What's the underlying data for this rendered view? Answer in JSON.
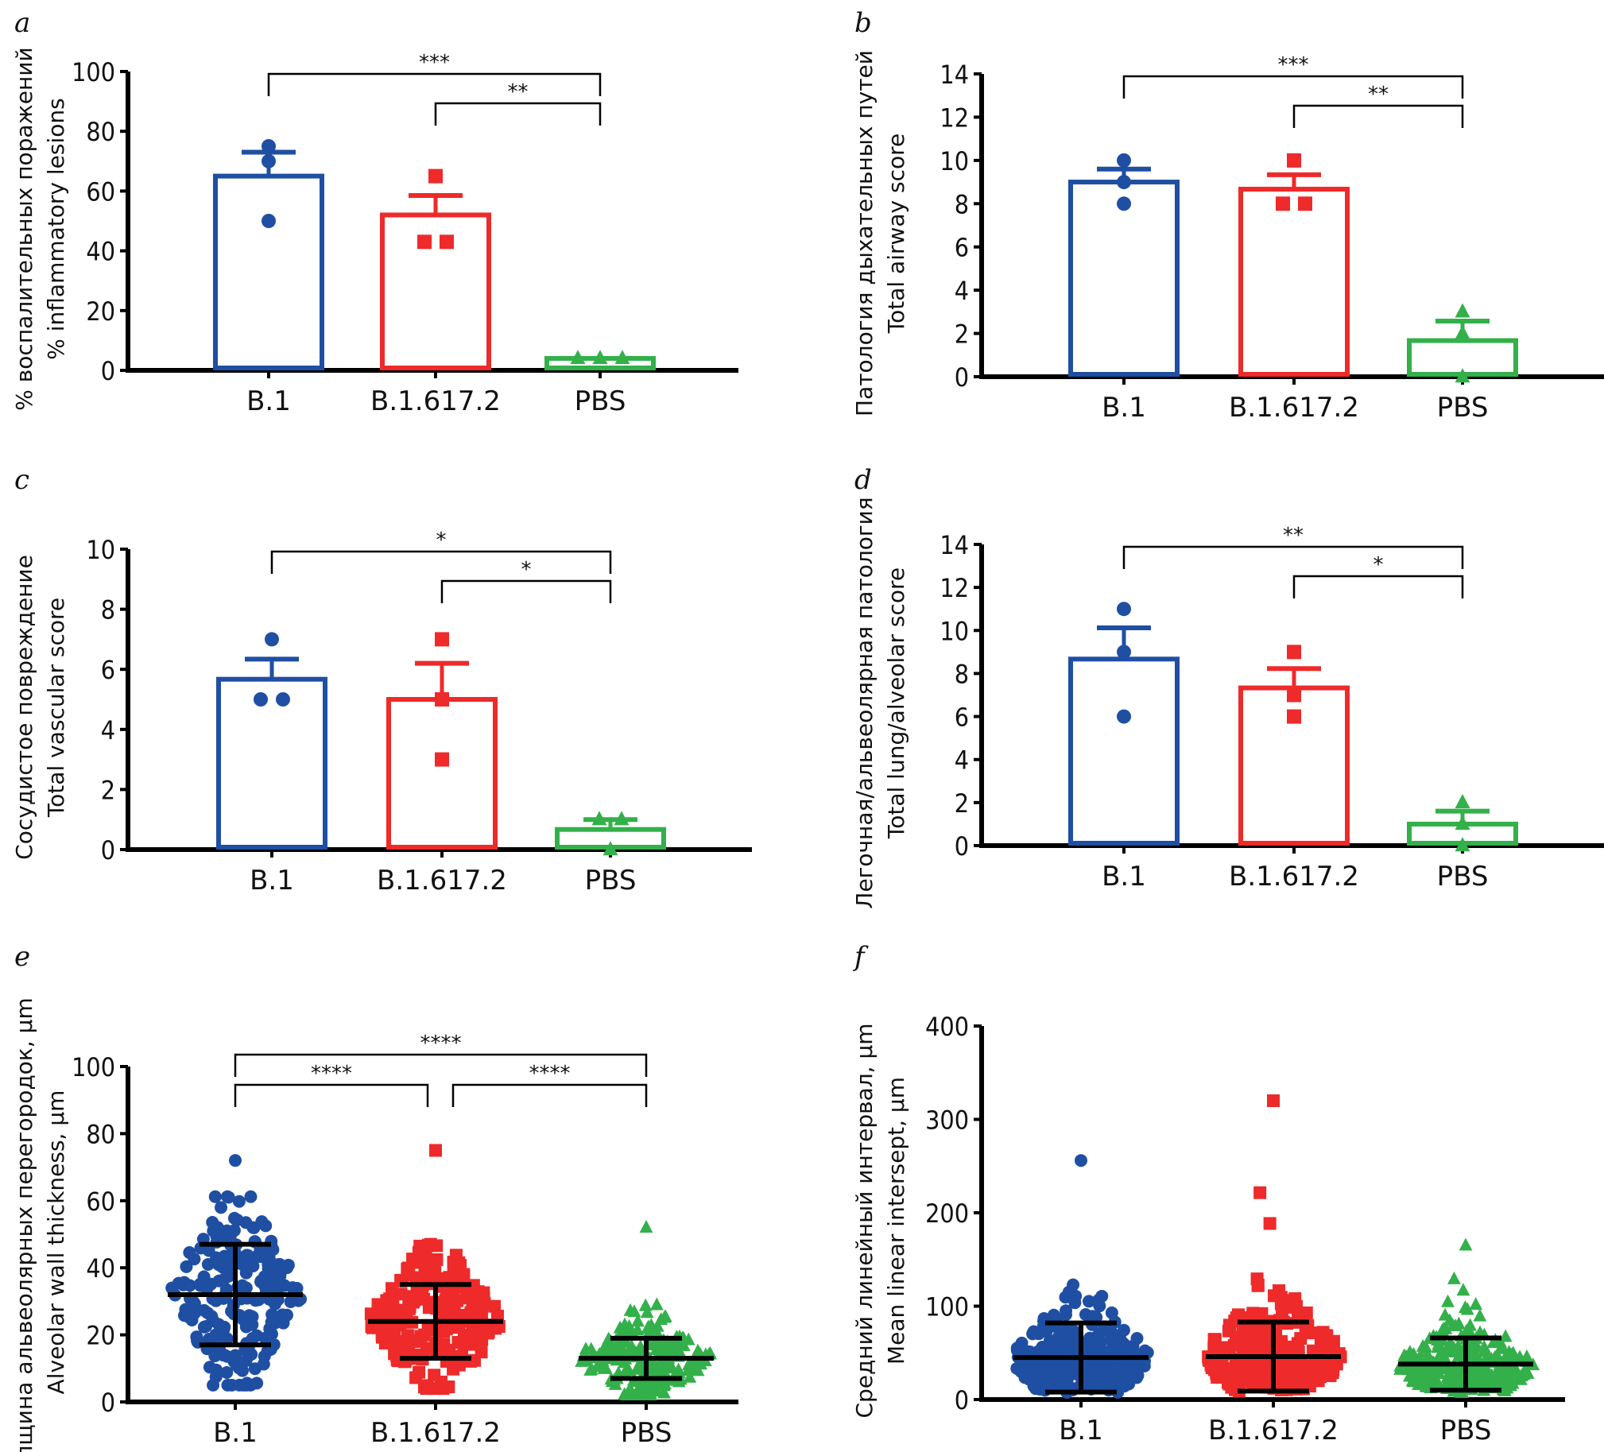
{
  "colors": {
    "B.1": "#1f4fa3",
    "B.1.617.2": "#ee2a2a",
    "PBS": "#33b04a",
    "axis": "#000000"
  },
  "chart_data": [
    {
      "letter": "a",
      "type": "bar",
      "ylabel": [
        "% воспалительных поражений",
        "% inflammatory lesions"
      ],
      "categories": [
        "B.1",
        "B.1.617.2",
        "PBS"
      ],
      "ylim": [
        0,
        100
      ],
      "yticks": [
        0,
        20,
        40,
        60,
        80,
        100
      ],
      "markers": [
        "circle",
        "square",
        "triangle"
      ],
      "series": [
        {
          "mean": 65,
          "sem": 8,
          "points": [
            75,
            70,
            50
          ]
        },
        {
          "mean": 52,
          "sem": 6.5,
          "points": [
            65,
            43,
            43
          ]
        },
        {
          "mean": 4,
          "sem": 0,
          "points": [
            4,
            4,
            4
          ]
        }
      ],
      "significance": [
        {
          "from": 0,
          "to": 2,
          "label": "***"
        },
        {
          "from": 1,
          "to": 2,
          "label": "**"
        }
      ]
    },
    {
      "letter": "b",
      "type": "bar",
      "ylabel": [
        "Патология дыхательных путей",
        "Total airway score"
      ],
      "categories": [
        "B.1",
        "B.1.617.2",
        "PBS"
      ],
      "ylim": [
        0,
        14
      ],
      "yticks": [
        0,
        2,
        4,
        6,
        8,
        10,
        12,
        14
      ],
      "markers": [
        "circle",
        "square",
        "triangle"
      ],
      "series": [
        {
          "mean": 9,
          "sem": 0.6,
          "points": [
            10,
            9,
            8
          ]
        },
        {
          "mean": 8.67,
          "sem": 0.67,
          "points": [
            10,
            8,
            8
          ]
        },
        {
          "mean": 1.67,
          "sem": 0.9,
          "points": [
            3,
            2,
            0
          ]
        }
      ],
      "significance": [
        {
          "from": 0,
          "to": 2,
          "label": "***"
        },
        {
          "from": 1,
          "to": 2,
          "label": "**"
        }
      ]
    },
    {
      "letter": "c",
      "type": "bar",
      "ylabel": [
        "Сосудистое повреждение",
        "Total vascular score"
      ],
      "categories": [
        "B.1",
        "B.1.617.2",
        "PBS"
      ],
      "ylim": [
        0,
        10
      ],
      "yticks": [
        0,
        2,
        4,
        6,
        8,
        10
      ],
      "markers": [
        "circle",
        "square",
        "triangle"
      ],
      "series": [
        {
          "mean": 5.67,
          "sem": 0.67,
          "points": [
            7,
            5,
            5
          ]
        },
        {
          "mean": 5,
          "sem": 1.2,
          "points": [
            7,
            5,
            3
          ]
        },
        {
          "mean": 0.67,
          "sem": 0.33,
          "points": [
            1,
            1,
            0
          ]
        }
      ],
      "significance": [
        {
          "from": 0,
          "to": 2,
          "label": "*"
        },
        {
          "from": 1,
          "to": 2,
          "label": "*"
        }
      ]
    },
    {
      "letter": "d",
      "type": "bar",
      "ylabel": [
        "Легочная/альвеолярная патология",
        "Total lung/alveolar score"
      ],
      "categories": [
        "B.1",
        "B.1.617.2",
        "PBS"
      ],
      "ylim": [
        0,
        14
      ],
      "yticks": [
        0,
        2,
        4,
        6,
        8,
        10,
        12,
        14
      ],
      "markers": [
        "circle",
        "square",
        "triangle"
      ],
      "series": [
        {
          "mean": 8.67,
          "sem": 1.45,
          "points": [
            11,
            9,
            6
          ]
        },
        {
          "mean": 7.33,
          "sem": 0.9,
          "points": [
            9,
            7,
            6
          ]
        },
        {
          "mean": 1,
          "sem": 0.6,
          "points": [
            2,
            1,
            0
          ]
        }
      ],
      "significance": [
        {
          "from": 0,
          "to": 2,
          "label": "**"
        },
        {
          "from": 1,
          "to": 2,
          "label": "*"
        }
      ]
    },
    {
      "letter": "e",
      "type": "scatter",
      "ylabel": [
        "Толщина альвеолярных перегородок, μm",
        "Alveolar wall thickness, μm"
      ],
      "categories": [
        "B.1",
        "B.1.617.2",
        "PBS"
      ],
      "ylim": [
        0,
        100
      ],
      "yticks": [
        0,
        20,
        40,
        60,
        80,
        100
      ],
      "markers": [
        "circle",
        "square",
        "triangle"
      ],
      "series": [
        {
          "mean": 32,
          "sd": 15,
          "min": 5,
          "max": 72
        },
        {
          "mean": 24,
          "sd": 11,
          "min": 4,
          "max": 75
        },
        {
          "mean": 13,
          "sd": 6,
          "min": 2,
          "max": 52
        }
      ],
      "significance": [
        {
          "from": 0,
          "to": 2,
          "label": "****"
        },
        {
          "from": 0,
          "to": 1,
          "label": "****"
        },
        {
          "from": 1,
          "to": 2,
          "label": "****"
        }
      ]
    },
    {
      "letter": "f",
      "type": "scatter",
      "ylabel": [
        "Средний линейный интервал, μm",
        "Mean linear intersept, μm"
      ],
      "categories": [
        "B.1",
        "B.1.617.2",
        "PBS"
      ],
      "ylim": [
        0,
        400
      ],
      "yticks": [
        0,
        100,
        200,
        300,
        400
      ],
      "markers": [
        "circle",
        "square",
        "triangle"
      ],
      "series": [
        {
          "mean": 45,
          "sd": 37,
          "min": 3,
          "max": 256
        },
        {
          "mean": 46,
          "sd": 37,
          "min": 3,
          "max": 320
        },
        {
          "mean": 38,
          "sd": 28,
          "min": 3,
          "max": 165
        }
      ],
      "significance": []
    }
  ]
}
